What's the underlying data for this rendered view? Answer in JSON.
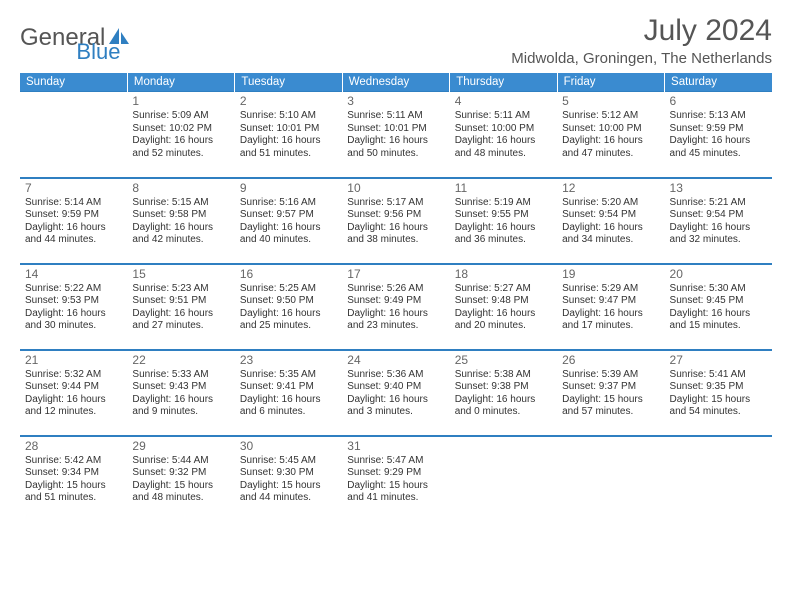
{
  "brand": {
    "part1": "General",
    "part2": "Blue"
  },
  "title": "July 2024",
  "location": "Midwolda, Groningen, The Netherlands",
  "colors": {
    "accent": "#2f7fc1",
    "header_bg": "#3a8bd0",
    "text": "#555555"
  },
  "day_headers": [
    "Sunday",
    "Monday",
    "Tuesday",
    "Wednesday",
    "Thursday",
    "Friday",
    "Saturday"
  ],
  "weeks": [
    [
      null,
      {
        "n": "1",
        "sunrise": "5:09 AM",
        "sunset": "10:02 PM",
        "daylight": "16 hours and 52 minutes."
      },
      {
        "n": "2",
        "sunrise": "5:10 AM",
        "sunset": "10:01 PM",
        "daylight": "16 hours and 51 minutes."
      },
      {
        "n": "3",
        "sunrise": "5:11 AM",
        "sunset": "10:01 PM",
        "daylight": "16 hours and 50 minutes."
      },
      {
        "n": "4",
        "sunrise": "5:11 AM",
        "sunset": "10:00 PM",
        "daylight": "16 hours and 48 minutes."
      },
      {
        "n": "5",
        "sunrise": "5:12 AM",
        "sunset": "10:00 PM",
        "daylight": "16 hours and 47 minutes."
      },
      {
        "n": "6",
        "sunrise": "5:13 AM",
        "sunset": "9:59 PM",
        "daylight": "16 hours and 45 minutes."
      }
    ],
    [
      {
        "n": "7",
        "sunrise": "5:14 AM",
        "sunset": "9:59 PM",
        "daylight": "16 hours and 44 minutes."
      },
      {
        "n": "8",
        "sunrise": "5:15 AM",
        "sunset": "9:58 PM",
        "daylight": "16 hours and 42 minutes."
      },
      {
        "n": "9",
        "sunrise": "5:16 AM",
        "sunset": "9:57 PM",
        "daylight": "16 hours and 40 minutes."
      },
      {
        "n": "10",
        "sunrise": "5:17 AM",
        "sunset": "9:56 PM",
        "daylight": "16 hours and 38 minutes."
      },
      {
        "n": "11",
        "sunrise": "5:19 AM",
        "sunset": "9:55 PM",
        "daylight": "16 hours and 36 minutes."
      },
      {
        "n": "12",
        "sunrise": "5:20 AM",
        "sunset": "9:54 PM",
        "daylight": "16 hours and 34 minutes."
      },
      {
        "n": "13",
        "sunrise": "5:21 AM",
        "sunset": "9:54 PM",
        "daylight": "16 hours and 32 minutes."
      }
    ],
    [
      {
        "n": "14",
        "sunrise": "5:22 AM",
        "sunset": "9:53 PM",
        "daylight": "16 hours and 30 minutes."
      },
      {
        "n": "15",
        "sunrise": "5:23 AM",
        "sunset": "9:51 PM",
        "daylight": "16 hours and 27 minutes."
      },
      {
        "n": "16",
        "sunrise": "5:25 AM",
        "sunset": "9:50 PM",
        "daylight": "16 hours and 25 minutes."
      },
      {
        "n": "17",
        "sunrise": "5:26 AM",
        "sunset": "9:49 PM",
        "daylight": "16 hours and 23 minutes."
      },
      {
        "n": "18",
        "sunrise": "5:27 AM",
        "sunset": "9:48 PM",
        "daylight": "16 hours and 20 minutes."
      },
      {
        "n": "19",
        "sunrise": "5:29 AM",
        "sunset": "9:47 PM",
        "daylight": "16 hours and 17 minutes."
      },
      {
        "n": "20",
        "sunrise": "5:30 AM",
        "sunset": "9:45 PM",
        "daylight": "16 hours and 15 minutes."
      }
    ],
    [
      {
        "n": "21",
        "sunrise": "5:32 AM",
        "sunset": "9:44 PM",
        "daylight": "16 hours and 12 minutes."
      },
      {
        "n": "22",
        "sunrise": "5:33 AM",
        "sunset": "9:43 PM",
        "daylight": "16 hours and 9 minutes."
      },
      {
        "n": "23",
        "sunrise": "5:35 AM",
        "sunset": "9:41 PM",
        "daylight": "16 hours and 6 minutes."
      },
      {
        "n": "24",
        "sunrise": "5:36 AM",
        "sunset": "9:40 PM",
        "daylight": "16 hours and 3 minutes."
      },
      {
        "n": "25",
        "sunrise": "5:38 AM",
        "sunset": "9:38 PM",
        "daylight": "16 hours and 0 minutes."
      },
      {
        "n": "26",
        "sunrise": "5:39 AM",
        "sunset": "9:37 PM",
        "daylight": "15 hours and 57 minutes."
      },
      {
        "n": "27",
        "sunrise": "5:41 AM",
        "sunset": "9:35 PM",
        "daylight": "15 hours and 54 minutes."
      }
    ],
    [
      {
        "n": "28",
        "sunrise": "5:42 AM",
        "sunset": "9:34 PM",
        "daylight": "15 hours and 51 minutes."
      },
      {
        "n": "29",
        "sunrise": "5:44 AM",
        "sunset": "9:32 PM",
        "daylight": "15 hours and 48 minutes."
      },
      {
        "n": "30",
        "sunrise": "5:45 AM",
        "sunset": "9:30 PM",
        "daylight": "15 hours and 44 minutes."
      },
      {
        "n": "31",
        "sunrise": "5:47 AM",
        "sunset": "9:29 PM",
        "daylight": "15 hours and 41 minutes."
      },
      null,
      null,
      null
    ]
  ],
  "labels": {
    "sunrise": "Sunrise:",
    "sunset": "Sunset:",
    "daylight": "Daylight:"
  }
}
